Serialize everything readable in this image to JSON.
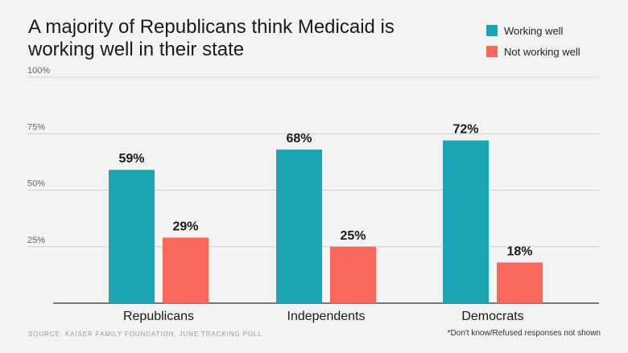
{
  "title": "A majority of Republicans think Medicaid is working well in their state",
  "legend": [
    {
      "label": "Working well",
      "color": "#1ca5b2"
    },
    {
      "label": "Not working well",
      "color": "#f8685c"
    }
  ],
  "source": "Source: Kaiser Family Foundation, June tracking poll",
  "footnote": "*Don't know/Refused responses not shown",
  "chart_data": {
    "type": "bar",
    "categories": [
      "Republicans",
      "Independents",
      "Democrats"
    ],
    "series": [
      {
        "name": "Working well",
        "values": [
          59,
          68,
          72
        ],
        "labels": [
          "59%",
          "68%",
          "72%"
        ],
        "color": "#1ca5b2"
      },
      {
        "name": "Not working well",
        "values": [
          29,
          25,
          18
        ],
        "labels": [
          "29%",
          "25%",
          "18%"
        ],
        "color": "#f8685c"
      }
    ],
    "yticks": [
      {
        "value": 100,
        "label": "100%"
      },
      {
        "value": 75,
        "label": "75%"
      },
      {
        "value": 50,
        "label": "50%"
      },
      {
        "value": 25,
        "label": "25%"
      }
    ],
    "ylim": [
      0,
      100
    ],
    "grid": true,
    "legend_position": "top-right",
    "title": "A majority of Republicans think Medicaid is working well in their state",
    "xlabel": "",
    "ylabel": ""
  }
}
